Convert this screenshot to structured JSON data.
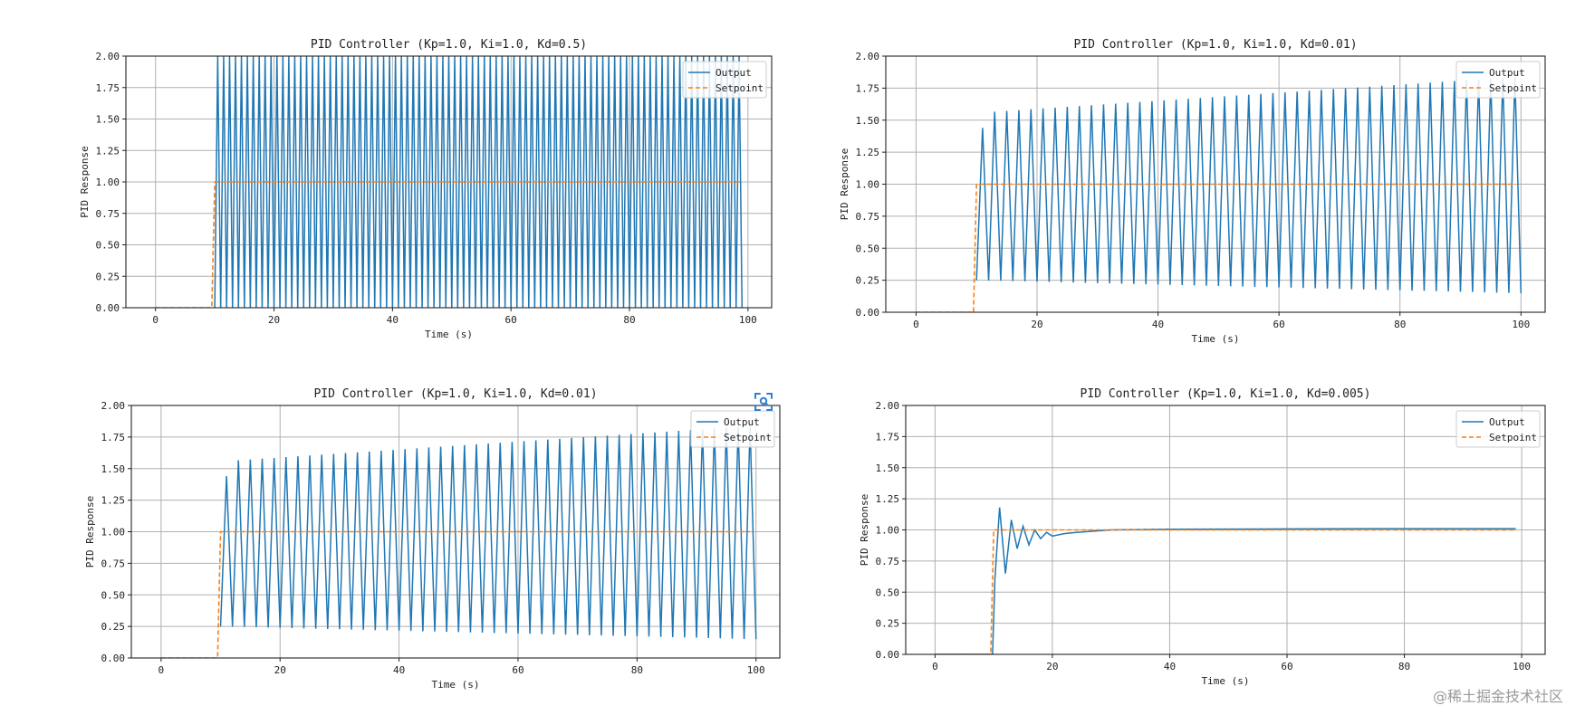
{
  "watermark": "@稀土掘金技术社区",
  "colors": {
    "output": "#1f77b4",
    "setpoint": "#ff7f0e",
    "grid": "#b0b0b0",
    "zoom_icon": "#2f7fd6"
  },
  "icons": {
    "zoom": "scan-search-icon"
  },
  "chart_data": [
    {
      "type": "line",
      "title": "PID Controller (Kp=1.0, Ki=1.0, Kd=0.5)",
      "xlabel": "Time (s)",
      "ylabel": "PID Response",
      "xlim": [
        -5,
        104
      ],
      "ylim": [
        0,
        2
      ],
      "xticks": [
        0,
        20,
        40,
        60,
        80,
        100
      ],
      "yticks": [
        "0.00",
        "0.25",
        "0.50",
        "0.75",
        "1.00",
        "1.25",
        "1.50",
        "1.75",
        "2.00"
      ],
      "grid": true,
      "legend": "upper right",
      "series": [
        {
          "name": "Output",
          "style": "solid",
          "model": {
            "kind": "oscillation",
            "start": 10,
            "end": 99,
            "period": 1.0,
            "low": 0.0,
            "high": 2.0,
            "high_end": 2.0,
            "low_end": 0.0,
            "first_peak": 2.0
          }
        },
        {
          "name": "Setpoint",
          "style": "dashed",
          "points": [
            [
              0,
              0
            ],
            [
              9.5,
              0
            ],
            [
              10,
              1
            ],
            [
              99,
              1
            ]
          ]
        }
      ]
    },
    {
      "type": "line",
      "title": "PID Controller (Kp=1.0, Ki=1.0, Kd=0.01)",
      "xlabel": "Time (s)",
      "ylabel": "PID Response",
      "xlim": [
        -5,
        104
      ],
      "ylim": [
        0,
        2
      ],
      "xticks": [
        0,
        20,
        40,
        60,
        80,
        100
      ],
      "yticks": [
        "0.00",
        "0.25",
        "0.50",
        "0.75",
        "1.00",
        "1.25",
        "1.50",
        "1.75",
        "2.00"
      ],
      "grid": true,
      "legend": "upper right",
      "series": [
        {
          "name": "Output",
          "style": "solid",
          "model": {
            "kind": "oscillation",
            "start": 10,
            "end": 99,
            "period": 2.0,
            "low": 0.25,
            "high": 1.56,
            "high_end": 1.84,
            "low_end": 0.15,
            "first_peak": 1.44
          }
        },
        {
          "name": "Setpoint",
          "style": "dashed",
          "points": [
            [
              0,
              0
            ],
            [
              9.5,
              0
            ],
            [
              10,
              1
            ],
            [
              99,
              1
            ]
          ]
        }
      ]
    },
    {
      "type": "line",
      "title": "PID Controller (Kp=1.0, Ki=1.0, Kd=0.01)",
      "xlabel": "Time (s)",
      "ylabel": "PID Response",
      "xlim": [
        -5,
        104
      ],
      "ylim": [
        0,
        2
      ],
      "xticks": [
        0,
        20,
        40,
        60,
        80,
        100
      ],
      "yticks": [
        "0.00",
        "0.25",
        "0.50",
        "0.75",
        "1.00",
        "1.25",
        "1.50",
        "1.75",
        "2.00"
      ],
      "grid": true,
      "legend": "upper right",
      "series": [
        {
          "name": "Output",
          "style": "solid",
          "model": {
            "kind": "oscillation",
            "start": 10,
            "end": 99,
            "period": 2.0,
            "low": 0.25,
            "high": 1.56,
            "high_end": 1.84,
            "low_end": 0.15,
            "first_peak": 1.44
          }
        },
        {
          "name": "Setpoint",
          "style": "dashed",
          "points": [
            [
              0,
              0
            ],
            [
              9.5,
              0
            ],
            [
              10,
              1
            ],
            [
              99,
              1
            ]
          ]
        }
      ]
    },
    {
      "type": "line",
      "title": "PID Controller (Kp=1.0, Ki=1.0, Kd=0.005)",
      "xlabel": "Time (s)",
      "ylabel": "PID Response",
      "xlim": [
        -5,
        104
      ],
      "ylim": [
        0,
        2
      ],
      "xticks": [
        0,
        20,
        40,
        60,
        80,
        100
      ],
      "yticks": [
        "0.00",
        "0.25",
        "0.50",
        "0.75",
        "1.00",
        "1.25",
        "1.50",
        "1.75",
        "2.00"
      ],
      "grid": true,
      "legend": "upper right",
      "series": [
        {
          "name": "Output",
          "style": "solid",
          "points": [
            [
              0,
              0
            ],
            [
              9.8,
              0
            ],
            [
              10.2,
              0.6
            ],
            [
              11,
              1.18
            ],
            [
              12,
              0.65
            ],
            [
              13,
              1.08
            ],
            [
              14,
              0.85
            ],
            [
              15,
              1.03
            ],
            [
              16,
              0.88
            ],
            [
              17,
              1.0
            ],
            [
              18,
              0.93
            ],
            [
              19,
              0.98
            ],
            [
              20,
              0.95
            ],
            [
              22,
              0.97
            ],
            [
              24,
              0.98
            ],
            [
              27,
              0.99
            ],
            [
              30,
              1.0
            ],
            [
              40,
              1.005
            ],
            [
              60,
              1.008
            ],
            [
              80,
              1.01
            ],
            [
              99,
              1.01
            ]
          ]
        },
        {
          "name": "Setpoint",
          "style": "dashed",
          "points": [
            [
              0,
              0
            ],
            [
              9.5,
              0
            ],
            [
              10,
              1
            ],
            [
              99,
              1
            ]
          ]
        }
      ]
    }
  ]
}
